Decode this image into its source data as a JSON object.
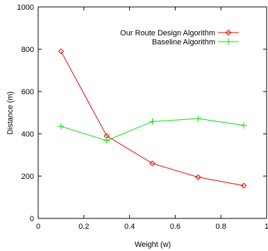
{
  "chart_data": {
    "type": "line",
    "title": "",
    "xlabel": "Weight (w)",
    "ylabel": "Distance (m)",
    "xlim": [
      0,
      1
    ],
    "ylim": [
      0,
      1000
    ],
    "xticks": [
      0,
      0.2,
      0.4,
      0.6,
      0.8,
      1
    ],
    "yticks": [
      0,
      200,
      400,
      600,
      800,
      1000
    ],
    "xtick_labels": [
      "0",
      "0.2",
      "0.4",
      "0.6",
      "0.8",
      "1"
    ],
    "ytick_labels": [
      "0",
      "200",
      "400",
      "600",
      "800",
      "1000"
    ],
    "grid": false,
    "legend_position": "top-right",
    "series": [
      {
        "name": "Our Route Design Algorithm",
        "color": "#e00000",
        "marker": "diamond",
        "x": [
          0.1,
          0.3,
          0.5,
          0.7,
          0.9
        ],
        "y": [
          790,
          390,
          260,
          195,
          155
        ]
      },
      {
        "name": "Baseline Algorithm",
        "color": "#00dd00",
        "marker": "plus",
        "x": [
          0.1,
          0.3,
          0.5,
          0.7,
          0.9
        ],
        "y": [
          435,
          368,
          458,
          472,
          440
        ]
      }
    ]
  }
}
